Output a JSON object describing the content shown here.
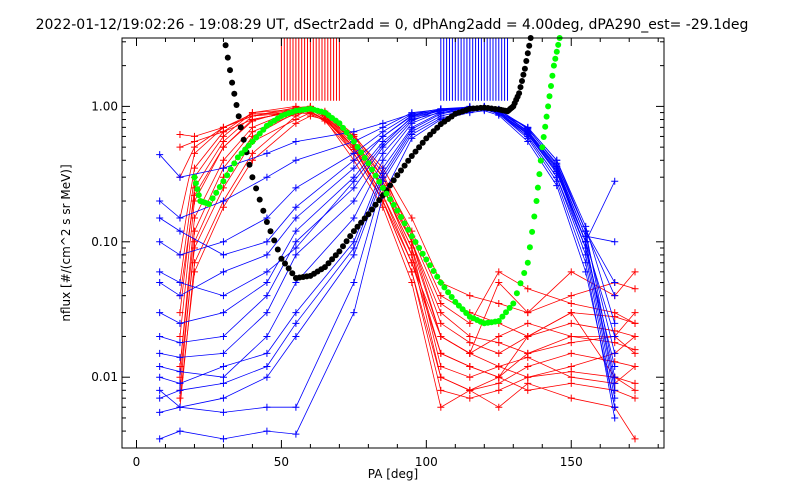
{
  "chart_data": {
    "type": "line",
    "title": "2022-01-12/19:02:26 - 19:08:29 UT, dSectr2add = 0, dPhAng2add = 4.00deg, dPA290_est= -29.1deg",
    "xlabel": "PA [deg]",
    "ylabel": "nflux [#/(cm^2 s sr MeV)]",
    "xlim": [
      -5,
      182
    ],
    "ylim": [
      0.003,
      3.2
    ],
    "yscale": "log",
    "x_ticks": [
      0,
      50,
      100,
      150
    ],
    "x_tick_labels": [
      "0",
      "50",
      "100",
      "150"
    ],
    "y_ticks": [
      0.01,
      0.1,
      1.0
    ],
    "y_tick_labels": [
      "0.01",
      "0.10",
      "1.00"
    ],
    "grid": false,
    "series": [
      {
        "name": "red spectra",
        "color": "#ff0000",
        "marker": "+",
        "pa": [
          15,
          20,
          30,
          40,
          55,
          60,
          65,
          75,
          85,
          95,
          105,
          115,
          125,
          135,
          150,
          165,
          172
        ],
        "lines": [
          [
            0.006,
            0.07,
            0.2,
            0.45,
            0.85,
            0.95,
            0.85,
            0.45,
            0.2,
            0.07,
            0.015,
            0.012,
            0.01,
            0.008,
            0.009,
            0.008,
            0.007
          ],
          [
            0.008,
            0.1,
            0.3,
            0.6,
            0.9,
            1.0,
            0.9,
            0.55,
            0.25,
            0.09,
            0.02,
            0.015,
            0.012,
            0.01,
            0.011,
            0.01,
            0.009
          ],
          [
            0.012,
            0.15,
            0.4,
            0.7,
            0.95,
            0.98,
            0.85,
            0.5,
            0.2,
            0.06,
            0.01,
            0.008,
            0.009,
            0.012,
            0.015,
            0.013,
            0.012
          ],
          [
            0.02,
            0.2,
            0.5,
            0.8,
            0.92,
            0.9,
            0.8,
            0.5,
            0.25,
            0.1,
            0.03,
            0.02,
            0.018,
            0.015,
            0.02,
            0.018,
            0.016
          ],
          [
            0.03,
            0.25,
            0.55,
            0.85,
            0.98,
            1.0,
            0.9,
            0.6,
            0.3,
            0.12,
            0.04,
            0.03,
            0.025,
            0.02,
            0.025,
            0.022,
            0.02
          ],
          [
            0.05,
            0.3,
            0.6,
            0.9,
            1.0,
            0.95,
            0.85,
            0.55,
            0.28,
            0.1,
            0.025,
            0.018,
            0.015,
            0.02,
            0.03,
            0.028,
            0.025
          ],
          [
            0.08,
            0.35,
            0.65,
            0.9,
            0.95,
            0.92,
            0.8,
            0.5,
            0.22,
            0.08,
            0.015,
            0.012,
            0.01,
            0.015,
            0.018,
            0.02,
            0.03
          ],
          [
            0.15,
            0.45,
            0.7,
            0.88,
            0.9,
            0.88,
            0.78,
            0.45,
            0.2,
            0.06,
            0.008,
            0.007,
            0.008,
            0.01,
            0.012,
            0.015,
            0.02
          ],
          [
            0.3,
            0.5,
            0.7,
            0.85,
            0.95,
            0.95,
            0.82,
            0.5,
            0.25,
            0.09,
            0.012,
            0.01,
            0.012,
            0.014,
            0.01,
            0.009,
            0.012
          ],
          [
            0.5,
            0.55,
            0.65,
            0.8,
            0.92,
            0.98,
            0.88,
            0.55,
            0.3,
            0.1,
            0.02,
            0.015,
            0.05,
            0.03,
            0.06,
            0.04,
            0.06
          ],
          [
            0.62,
            0.6,
            0.7,
            0.85,
            0.9,
            0.96,
            0.86,
            0.52,
            0.26,
            0.08,
            0.01,
            0.008,
            0.01,
            0.02,
            0.03,
            0.01,
            0.008
          ],
          [
            0.012,
            0.12,
            0.35,
            0.65,
            0.88,
            0.93,
            0.87,
            0.6,
            0.35,
            0.15,
            0.05,
            0.04,
            0.035,
            0.03,
            0.04,
            0.05,
            0.045
          ],
          [
            0.04,
            0.22,
            0.5,
            0.78,
            0.96,
            0.99,
            0.92,
            0.62,
            0.32,
            0.11,
            0.035,
            0.025,
            0.06,
            0.045,
            0.035,
            0.03,
            0.025
          ],
          [
            0.01,
            0.09,
            0.25,
            0.55,
            0.8,
            0.9,
            0.8,
            0.4,
            0.18,
            0.05,
            0.006,
            0.008,
            0.006,
            0.009,
            0.007,
            0.006,
            0.0035
          ],
          [
            0.007,
            0.06,
            0.18,
            0.4,
            0.75,
            0.85,
            0.8,
            0.48,
            0.22,
            0.07,
            0.02,
            0.015,
            0.02,
            0.025,
            0.02,
            0.02,
            0.015
          ]
        ]
      },
      {
        "name": "blue spectra",
        "color": "#0000ff",
        "marker": "+",
        "pa": [
          8,
          15,
          30,
          45,
          55,
          75,
          85,
          95,
          105,
          115,
          120,
          125,
          135,
          145,
          155,
          165
        ],
        "lines": [
          [
            0.008,
            0.006,
            0.007,
            0.01,
            0.02,
            0.08,
            0.3,
            0.65,
            0.85,
            0.95,
            0.98,
            0.9,
            0.6,
            0.3,
            0.08,
            0.006
          ],
          [
            0.01,
            0.009,
            0.012,
            0.015,
            0.03,
            0.1,
            0.35,
            0.7,
            0.9,
            0.98,
            1.0,
            0.95,
            0.65,
            0.35,
            0.1,
            0.008
          ],
          [
            0.012,
            0.011,
            0.01,
            0.02,
            0.05,
            0.15,
            0.4,
            0.75,
            0.92,
            1.0,
            0.98,
            0.9,
            0.7,
            0.4,
            0.12,
            0.01
          ],
          [
            0.015,
            0.014,
            0.015,
            0.03,
            0.08,
            0.2,
            0.45,
            0.78,
            0.95,
            0.98,
            0.96,
            0.88,
            0.6,
            0.3,
            0.09,
            0.012
          ],
          [
            0.02,
            0.018,
            0.02,
            0.04,
            0.1,
            0.25,
            0.5,
            0.8,
            0.9,
            0.95,
            0.98,
            0.92,
            0.65,
            0.35,
            0.11,
            0.015
          ],
          [
            0.03,
            0.025,
            0.03,
            0.05,
            0.12,
            0.3,
            0.55,
            0.82,
            0.93,
            0.97,
            0.95,
            0.9,
            0.62,
            0.32,
            0.1,
            0.02
          ],
          [
            0.05,
            0.04,
            0.06,
            0.08,
            0.15,
            0.35,
            0.6,
            0.85,
            0.95,
            0.98,
            0.99,
            0.93,
            0.7,
            0.4,
            0.13,
            0.025
          ],
          [
            0.1,
            0.08,
            0.1,
            0.15,
            0.25,
            0.45,
            0.65,
            0.88,
            0.96,
            0.99,
            1.0,
            0.95,
            0.68,
            0.38,
            0.12,
            0.05
          ],
          [
            0.2,
            0.15,
            0.2,
            0.3,
            0.4,
            0.55,
            0.7,
            0.9,
            0.95,
            0.97,
            0.98,
            0.92,
            0.66,
            0.36,
            0.11,
            0.1
          ],
          [
            0.44,
            0.3,
            0.35,
            0.45,
            0.55,
            0.65,
            0.75,
            0.88,
            0.93,
            0.96,
            0.97,
            0.9,
            0.63,
            0.33,
            0.1,
            0.28
          ],
          [
            0.0055,
            0.006,
            0.0055,
            0.006,
            0.006,
            0.05,
            0.28,
            0.62,
            0.82,
            0.92,
            0.95,
            0.88,
            0.58,
            0.28,
            0.07,
            0.005
          ],
          [
            0.0035,
            0.004,
            0.0035,
            0.004,
            0.0038,
            0.03,
            0.22,
            0.58,
            0.8,
            0.9,
            0.93,
            0.86,
            0.55,
            0.26,
            0.06,
            0.006
          ],
          [
            0.007,
            0.008,
            0.009,
            0.012,
            0.025,
            0.09,
            0.32,
            0.68,
            0.88,
            0.96,
            0.97,
            0.91,
            0.62,
            0.33,
            0.09,
            0.007
          ],
          [
            0.06,
            0.05,
            0.04,
            0.06,
            0.09,
            0.28,
            0.52,
            0.84,
            0.93,
            0.97,
            0.98,
            0.9,
            0.64,
            0.34,
            0.1,
            0.009
          ],
          [
            0.15,
            0.12,
            0.08,
            0.1,
            0.18,
            0.4,
            0.6,
            0.86,
            0.94,
            0.98,
            0.99,
            0.94,
            0.69,
            0.37,
            0.12,
            0.04
          ]
        ]
      },
      {
        "name": "black dots",
        "color": "#000000",
        "marker": "dot",
        "x": [
          30,
          33,
          36,
          40,
          45,
          50,
          55,
          60,
          65,
          70,
          75,
          80,
          85,
          90,
          95,
          100,
          105,
          110,
          115,
          120,
          125,
          128,
          130,
          132,
          134,
          136
        ],
        "y": [
          3.5,
          1.5,
          0.7,
          0.3,
          0.14,
          0.075,
          0.054,
          0.056,
          0.065,
          0.085,
          0.12,
          0.16,
          0.22,
          0.31,
          0.43,
          0.58,
          0.74,
          0.88,
          0.96,
          0.98,
          0.95,
          0.92,
          1.0,
          1.25,
          1.9,
          3.2
        ]
      },
      {
        "name": "green dots",
        "color": "#00ff00",
        "marker": "dot",
        "x": [
          20,
          22,
          25,
          30,
          35,
          40,
          45,
          50,
          55,
          60,
          65,
          70,
          75,
          80,
          85,
          90,
          95,
          100,
          105,
          110,
          115,
          120,
          125,
          130,
          135,
          138,
          140,
          142,
          144,
          146
        ],
        "y": [
          0.3,
          0.2,
          0.19,
          0.28,
          0.42,
          0.55,
          0.72,
          0.85,
          0.93,
          0.96,
          0.9,
          0.75,
          0.55,
          0.38,
          0.25,
          0.17,
          0.11,
          0.074,
          0.05,
          0.036,
          0.028,
          0.025,
          0.026,
          0.035,
          0.07,
          0.2,
          0.5,
          1.0,
          2.0,
          3.2
        ]
      }
    ],
    "red_spikes_pa": [
      50,
      51,
      52,
      53,
      54,
      55,
      56,
      57,
      58,
      59,
      60,
      61,
      62,
      63,
      64,
      65,
      66,
      67,
      68,
      69,
      70
    ],
    "blue_spikes_pa": [
      105,
      106,
      107,
      108,
      109,
      110,
      111,
      112,
      113,
      114,
      115,
      116,
      117,
      118,
      119,
      120,
      121,
      122,
      123,
      124,
      125,
      126,
      127,
      128
    ]
  }
}
